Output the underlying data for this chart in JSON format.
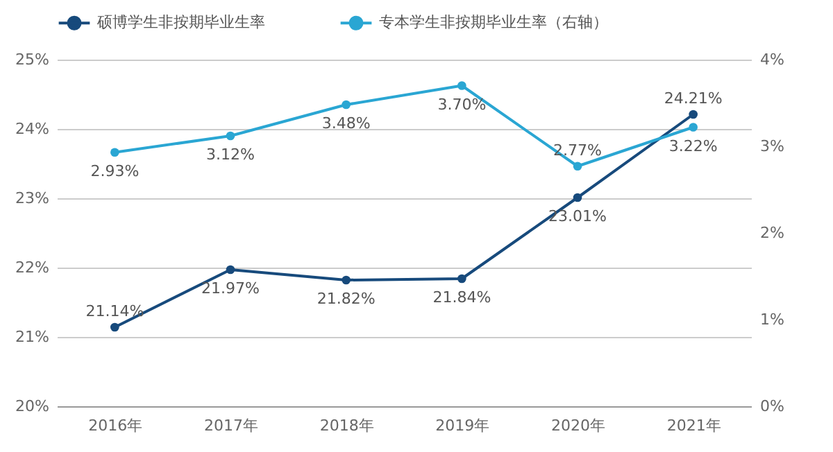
{
  "chart_data": {
    "type": "line",
    "categories": [
      "2016年",
      "2017年",
      "2018年",
      "2019年",
      "2020年",
      "2021年"
    ],
    "series": [
      {
        "name": "硕博学生非按期毕业生率",
        "color": "#174a7c",
        "values": [
          21.14,
          21.97,
          21.82,
          21.84,
          23.01,
          24.21
        ],
        "value_labels": [
          "21.14%",
          "21.97%",
          "21.82%",
          "21.84%",
          "23.01%",
          "24.21%"
        ]
      },
      {
        "name": "专本学生非按期毕业生率（右轴）",
        "color": "#2aa6d3",
        "axis": "y2",
        "values": [
          2.93,
          3.12,
          3.48,
          3.7,
          2.77,
          3.22
        ],
        "value_labels": [
          "2.93%",
          "3.12%",
          "3.48%",
          "3.70%",
          "2.77%",
          "3.22%"
        ]
      }
    ],
    "ylim": [
      20,
      25
    ],
    "yticks": [
      {
        "value": 20,
        "label": "20%"
      },
      {
        "value": 21,
        "label": "21%"
      },
      {
        "value": 22,
        "label": "22%"
      },
      {
        "value": 23,
        "label": "23%"
      },
      {
        "value": 24,
        "label": "24%"
      },
      {
        "value": 25,
        "label": "25%"
      }
    ],
    "y2lim": [
      0,
      4
    ],
    "y2ticks": [
      {
        "value": 0,
        "label": "0%"
      },
      {
        "value": 1,
        "label": "1%"
      },
      {
        "value": 2,
        "label": "2%"
      },
      {
        "value": 3,
        "label": "3%"
      },
      {
        "value": 4,
        "label": "4%"
      }
    ],
    "grid": "y",
    "legend": "top",
    "marker": "circle",
    "line_style": "solid"
  }
}
